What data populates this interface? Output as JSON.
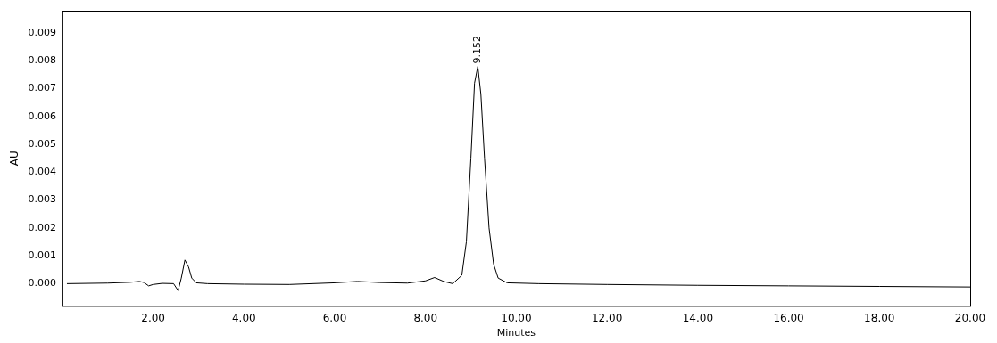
{
  "chart_data": {
    "type": "line",
    "x_label": "Minutes",
    "y_label": "AU",
    "x": [
      0.1,
      1.0,
      1.5,
      1.7,
      1.8,
      1.9,
      2.0,
      2.2,
      2.45,
      2.55,
      2.62,
      2.7,
      2.78,
      2.85,
      2.95,
      3.2,
      4.0,
      5.0,
      6.0,
      6.5,
      7.0,
      7.6,
      8.0,
      8.2,
      8.4,
      8.6,
      8.8,
      8.9,
      9.0,
      9.08,
      9.152,
      9.22,
      9.3,
      9.4,
      9.5,
      9.6,
      9.8,
      10.5,
      12.0,
      14.0,
      16.0,
      18.0,
      20.0
    ],
    "series": [
      {
        "color": "#000000",
        "values": [
          0.0,
          2e-05,
          5e-05,
          8e-05,
          4e-05,
          -8e-05,
          -3e-05,
          1e-05,
          0.0,
          -0.00025,
          0.0002,
          0.00085,
          0.0006,
          0.0002,
          3e-05,
          0.0,
          -2e-05,
          -3e-05,
          3e-05,
          8e-05,
          4e-05,
          2e-05,
          0.0001,
          0.00022,
          8e-05,
          0.0,
          0.0003,
          0.0015,
          0.0045,
          0.0072,
          0.0078,
          0.0068,
          0.0045,
          0.002,
          0.0007,
          0.0002,
          3e-05,
          0.0,
          -3e-05,
          -6e-05,
          -8e-05,
          -0.0001,
          -0.00012
        ]
      }
    ],
    "xlim": [
      0,
      20
    ],
    "ylim": [
      -0.0008,
      0.0098
    ],
    "xticks": [
      {
        "value": 2,
        "label": "2.00"
      },
      {
        "value": 4,
        "label": "4.00"
      },
      {
        "value": 6,
        "label": "6.00"
      },
      {
        "value": 8,
        "label": "8.00"
      },
      {
        "value": 10,
        "label": "10.00"
      },
      {
        "value": 12,
        "label": "12.00"
      },
      {
        "value": 14,
        "label": "14.00"
      },
      {
        "value": 16,
        "label": "16.00"
      },
      {
        "value": 18,
        "label": "18.00"
      },
      {
        "value": 20,
        "label": "20.00"
      }
    ],
    "yticks": [
      {
        "value": 0,
        "label": "0.000"
      },
      {
        "value": 0.001,
        "label": "0.001"
      },
      {
        "value": 0.002,
        "label": "0.002"
      },
      {
        "value": 0.003,
        "label": "0.003"
      },
      {
        "value": 0.004,
        "label": "0.004"
      },
      {
        "value": 0.005,
        "label": "0.005"
      },
      {
        "value": 0.006,
        "label": "0.006"
      },
      {
        "value": 0.007,
        "label": "0.007"
      },
      {
        "value": 0.008,
        "label": "0.008"
      },
      {
        "value": 0.009,
        "label": "0.009"
      }
    ],
    "annotations": [
      {
        "text": "9.152",
        "x": 9.152,
        "y": 0.0078
      }
    ],
    "grid": false
  }
}
